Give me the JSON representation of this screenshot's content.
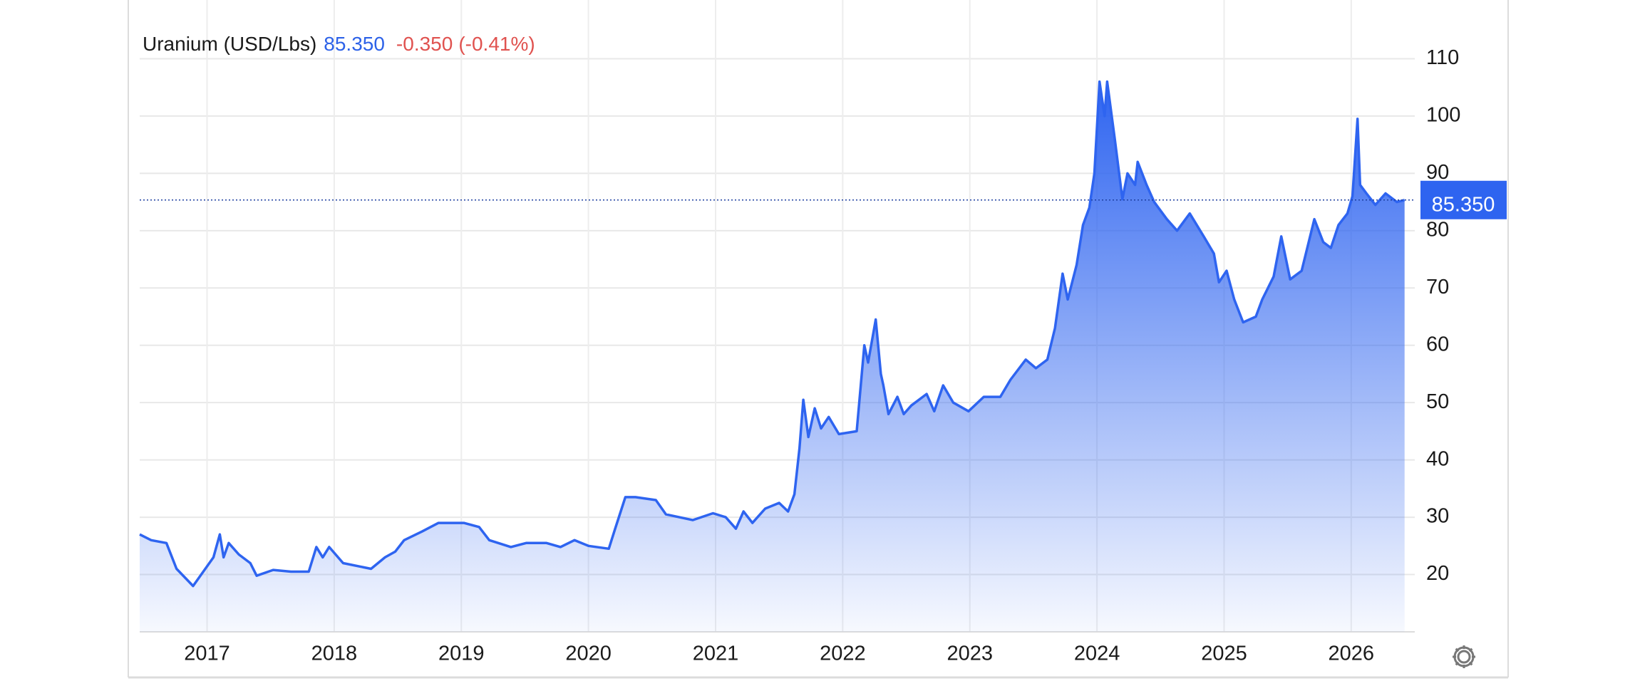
{
  "chart_data": {
    "type": "area",
    "title": "Uranium (USD/Lbs)",
    "last_value": {
      "value": 85.35,
      "label": "85.350"
    },
    "change": {
      "value": -0.35,
      "label": "-0.350"
    },
    "change_percent": {
      "value": -0.41,
      "label": "(-0.41%)"
    },
    "color": "#2e64f0",
    "grid": true,
    "xlim": [
      2016.47,
      2026.5
    ],
    "xticks": [
      2017,
      2018,
      2019,
      2020,
      2021,
      2022,
      2023,
      2024,
      2025,
      2026
    ],
    "ylim": [
      10,
      120
    ],
    "yticks": [
      20,
      30,
      40,
      50,
      60,
      70,
      80,
      90,
      100,
      110
    ],
    "series": [
      {
        "name": "Uranium",
        "x": [
          2016.47,
          2016.56,
          2016.68,
          2016.76,
          2016.89,
          2016.97,
          2017.05,
          2017.1,
          2017.13,
          2017.17,
          2017.25,
          2017.34,
          2017.39,
          2017.52,
          2017.66,
          2017.8,
          2017.86,
          2017.91,
          2017.96,
          2018.07,
          2018.29,
          2018.4,
          2018.48,
          2018.55,
          2018.69,
          2018.82,
          2019.02,
          2019.14,
          2019.22,
          2019.39,
          2019.51,
          2019.67,
          2019.78,
          2019.89,
          2020.0,
          2020.16,
          2020.21,
          2020.29,
          2020.37,
          2020.53,
          2020.61,
          2020.82,
          2020.98,
          2021.08,
          2021.16,
          2021.22,
          2021.29,
          2021.39,
          2021.5,
          2021.57,
          2021.62,
          2021.66,
          2021.69,
          2021.73,
          2021.78,
          2021.83,
          2021.89,
          2021.97,
          2022.11,
          2022.17,
          2022.2,
          2022.26,
          2022.3,
          2022.32,
          2022.36,
          2022.43,
          2022.48,
          2022.54,
          2022.66,
          2022.72,
          2022.79,
          2022.87,
          2022.99,
          2023.11,
          2023.24,
          2023.32,
          2023.44,
          2023.52,
          2023.61,
          2023.67,
          2023.73,
          2023.77,
          2023.84,
          2023.89,
          2023.94,
          2023.98,
          2024.02,
          2024.06,
          2024.08,
          2024.14,
          2024.2,
          2024.24,
          2024.3,
          2024.32,
          2024.39,
          2024.45,
          2024.55,
          2024.63,
          2024.73,
          2024.84,
          2024.92,
          2024.96,
          2025.02,
          2025.08,
          2025.15,
          2025.25,
          2025.3,
          2025.39,
          2025.45,
          2025.52,
          2025.61,
          2025.71,
          2025.78,
          2025.84,
          2025.9,
          2025.97,
          2026.01,
          2026.05,
          2026.07,
          2026.12,
          2026.19,
          2026.27,
          2026.36,
          2026.42
        ],
        "values": [
          27,
          26,
          25.5,
          21,
          18,
          20.5,
          23,
          27,
          23,
          25.5,
          23.5,
          22,
          19.8,
          20.8,
          20.5,
          20.5,
          24.8,
          23,
          24.8,
          22,
          21,
          23,
          24,
          26,
          27.5,
          29,
          29,
          28.3,
          26,
          24.8,
          25.5,
          25.5,
          24.8,
          26,
          25,
          24.5,
          28,
          33.5,
          33.5,
          33,
          30.5,
          29.5,
          30.7,
          30,
          28,
          31,
          29,
          31.5,
          32.5,
          31,
          34,
          42,
          50.5,
          44,
          49,
          45.5,
          47.5,
          44.5,
          45,
          60,
          57,
          64.5,
          55,
          53,
          48,
          51,
          48,
          49.5,
          51.5,
          48.5,
          53,
          50,
          48.5,
          51,
          51,
          54,
          57.5,
          56,
          57.5,
          63,
          72.5,
          68,
          74,
          81,
          84,
          90,
          106,
          100,
          106,
          96,
          85.5,
          90,
          88,
          92,
          88,
          85,
          82,
          80,
          83,
          79,
          76,
          71,
          73,
          68,
          64,
          65,
          68,
          72,
          79,
          71.5,
          73,
          82,
          78,
          77,
          81,
          83,
          86,
          99.5,
          88,
          86.5,
          84.5,
          86.5,
          85,
          85.35
        ]
      }
    ]
  }
}
